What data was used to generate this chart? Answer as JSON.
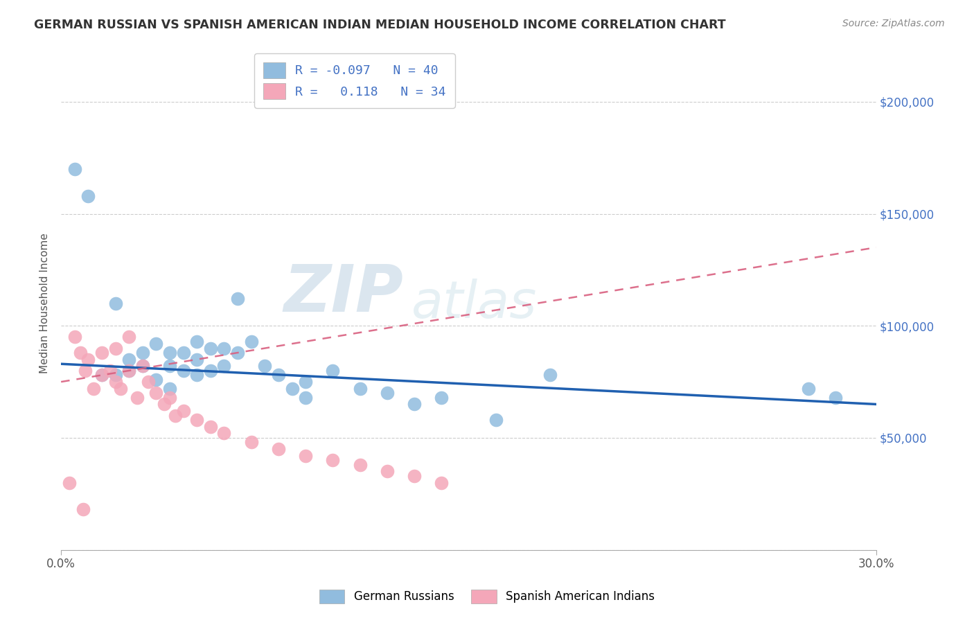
{
  "title": "GERMAN RUSSIAN VS SPANISH AMERICAN INDIAN MEDIAN HOUSEHOLD INCOME CORRELATION CHART",
  "source": "Source: ZipAtlas.com",
  "ylabel": "Median Household Income",
  "xlim": [
    0.0,
    0.3
  ],
  "ylim": [
    0,
    220000
  ],
  "xtick_vals": [
    0.0,
    0.3
  ],
  "xtick_labels": [
    "0.0%",
    "30.0%"
  ],
  "ytick_vals": [
    0,
    50000,
    100000,
    150000,
    200000
  ],
  "ytick_labels": [
    "",
    "$50,000",
    "$100,000",
    "$150,000",
    "$200,000"
  ],
  "blue_R": -0.097,
  "blue_N": 40,
  "pink_R": 0.118,
  "pink_N": 34,
  "blue_color": "#91bcde",
  "pink_color": "#f4a7b9",
  "blue_line_color": "#2060b0",
  "pink_line_color": "#d96080",
  "watermark_zip": "ZIP",
  "watermark_atlas": "atlas",
  "blue_line_y0": 83000,
  "blue_line_y1": 65000,
  "pink_line_y0": 75000,
  "pink_line_y1": 135000,
  "blue_scatter_x": [
    0.005,
    0.01,
    0.015,
    0.02,
    0.02,
    0.025,
    0.025,
    0.03,
    0.03,
    0.035,
    0.035,
    0.04,
    0.04,
    0.04,
    0.045,
    0.045,
    0.05,
    0.05,
    0.05,
    0.055,
    0.055,
    0.06,
    0.06,
    0.065,
    0.065,
    0.07,
    0.075,
    0.08,
    0.085,
    0.09,
    0.09,
    0.1,
    0.11,
    0.12,
    0.13,
    0.14,
    0.16,
    0.18,
    0.275,
    0.285
  ],
  "blue_scatter_y": [
    170000,
    158000,
    78000,
    110000,
    78000,
    85000,
    80000,
    88000,
    82000,
    92000,
    76000,
    88000,
    82000,
    72000,
    88000,
    80000,
    93000,
    85000,
    78000,
    90000,
    80000,
    90000,
    82000,
    112000,
    88000,
    93000,
    82000,
    78000,
    72000,
    75000,
    68000,
    80000,
    72000,
    70000,
    65000,
    68000,
    58000,
    78000,
    72000,
    68000
  ],
  "pink_scatter_x": [
    0.003,
    0.005,
    0.007,
    0.009,
    0.01,
    0.012,
    0.015,
    0.015,
    0.018,
    0.02,
    0.02,
    0.022,
    0.025,
    0.025,
    0.028,
    0.03,
    0.032,
    0.035,
    0.038,
    0.04,
    0.042,
    0.045,
    0.05,
    0.055,
    0.06,
    0.07,
    0.08,
    0.09,
    0.1,
    0.11,
    0.12,
    0.13,
    0.14,
    0.008
  ],
  "pink_scatter_y": [
    30000,
    95000,
    88000,
    80000,
    85000,
    72000,
    88000,
    78000,
    80000,
    90000,
    75000,
    72000,
    95000,
    80000,
    68000,
    82000,
    75000,
    70000,
    65000,
    68000,
    60000,
    62000,
    58000,
    55000,
    52000,
    48000,
    45000,
    42000,
    40000,
    38000,
    35000,
    33000,
    30000,
    18000
  ]
}
